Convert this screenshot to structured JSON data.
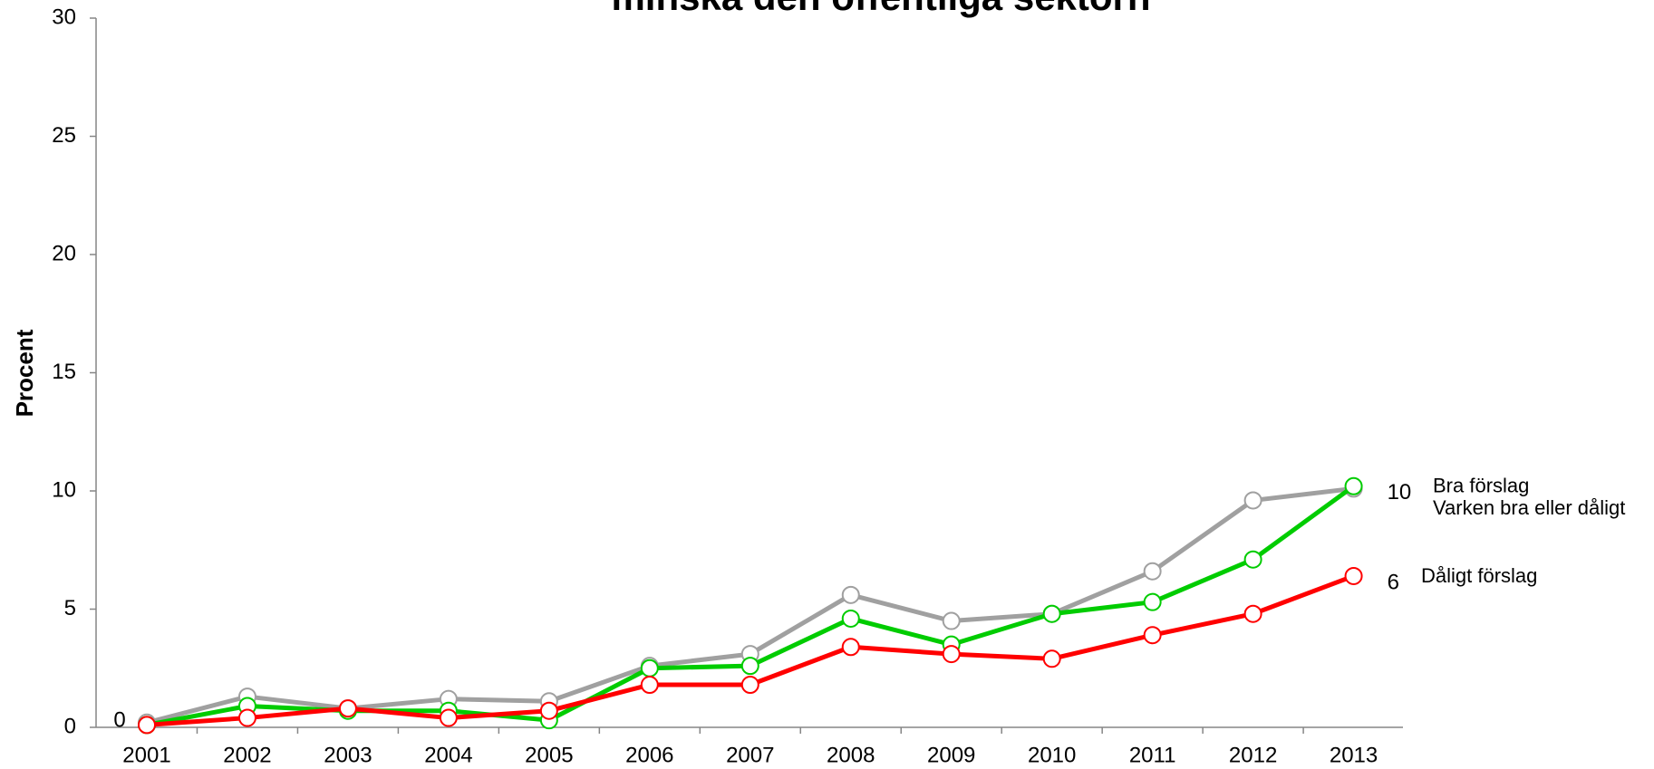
{
  "chart_data": {
    "type": "line",
    "title": "minska den offentliga sektorn",
    "ylabel": "Procent",
    "categories": [
      "2001",
      "2002",
      "2003",
      "2004",
      "2005",
      "2006",
      "2007",
      "2008",
      "2009",
      "2010",
      "2011",
      "2012",
      "2013"
    ],
    "ylim": [
      0,
      30
    ],
    "yticks": [
      0,
      5,
      10,
      15,
      20,
      25,
      30
    ],
    "series": [
      {
        "name": "Varken bra eller dåligt",
        "color": "#a0a0a0",
        "values": [
          0.2,
          1.3,
          0.8,
          1.2,
          1.1,
          2.6,
          3.1,
          5.6,
          4.5,
          4.8,
          6.6,
          9.6,
          10.1
        ]
      },
      {
        "name": "Bra förslag",
        "color": "#00cc00",
        "values": [
          0.1,
          0.9,
          0.7,
          0.7,
          0.3,
          2.5,
          2.6,
          4.6,
          3.5,
          4.8,
          5.3,
          7.1,
          10.2
        ],
        "value_labels": [
          null,
          null,
          null,
          null,
          null,
          null,
          null,
          null,
          null,
          null,
          null,
          null,
          "10"
        ]
      },
      {
        "name": "Dåligt förslag",
        "color": "#ff0000",
        "values": [
          0.1,
          0.4,
          0.8,
          0.4,
          0.7,
          1.8,
          1.8,
          3.4,
          3.1,
          2.9,
          3.9,
          4.8,
          6.4
        ],
        "value_labels": [
          "0",
          null,
          null,
          null,
          null,
          null,
          null,
          null,
          null,
          null,
          null,
          null,
          "6"
        ]
      }
    ]
  }
}
